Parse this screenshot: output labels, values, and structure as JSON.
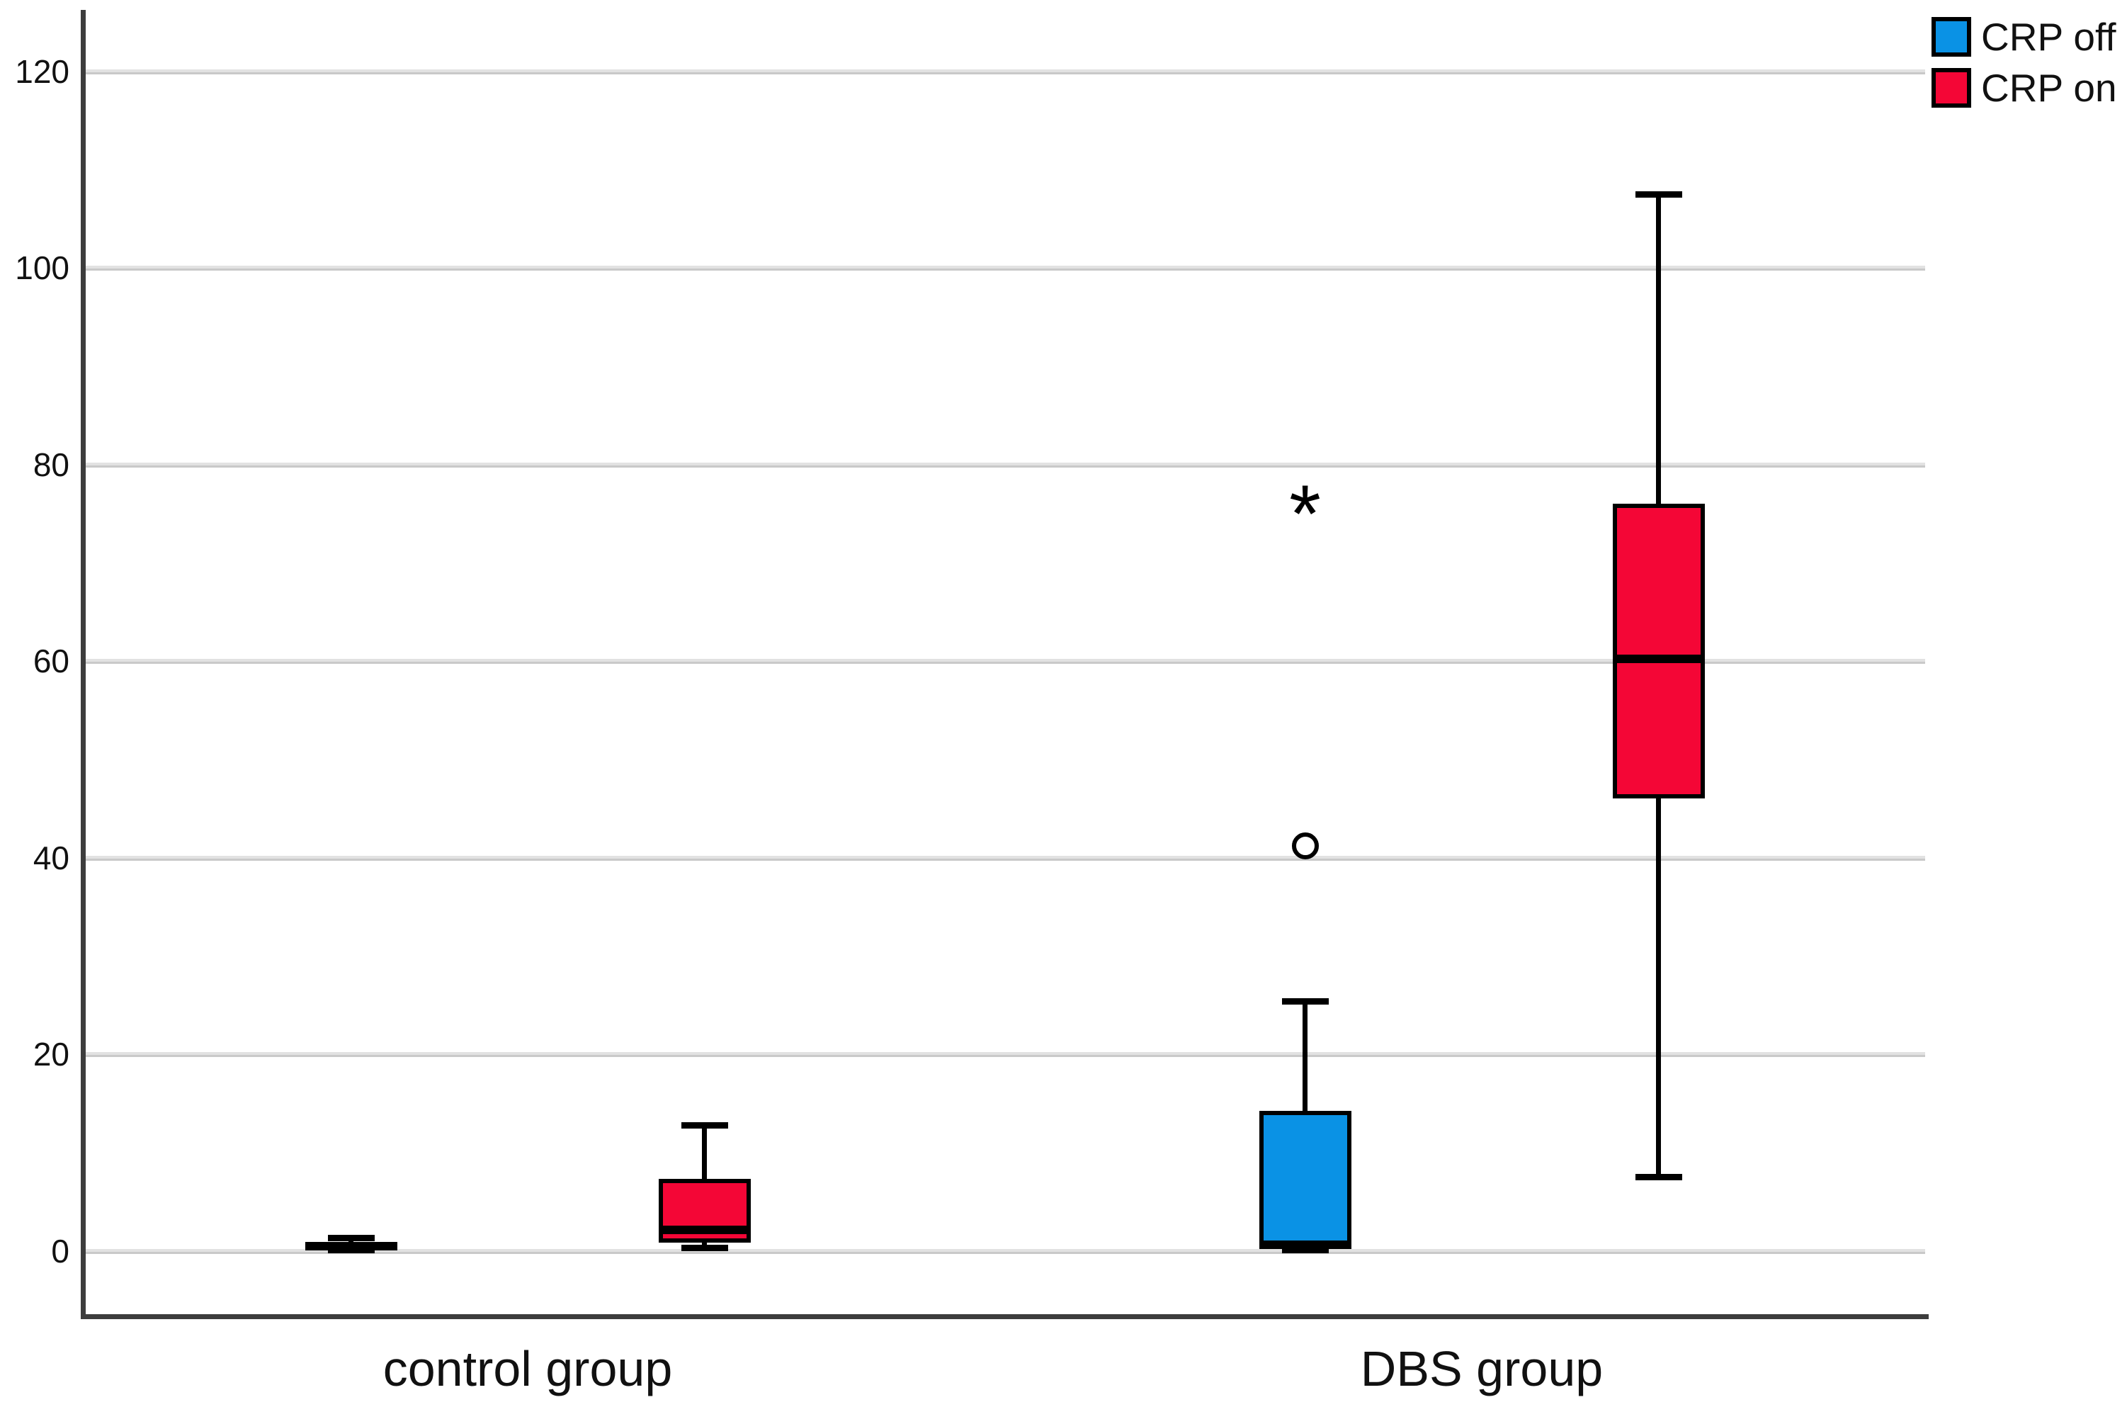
{
  "chart_data": {
    "type": "boxplot",
    "orientation": "vertical",
    "title": "",
    "xlabel": "",
    "ylabel": "",
    "y_axis": {
      "ticks": [
        0,
        20,
        40,
        60,
        80,
        100,
        120
      ],
      "range": [
        -6.7,
        126.2
      ],
      "grid": true
    },
    "x_axis": {
      "categories": [
        "control group",
        "DBS group"
      ]
    },
    "legend": {
      "position": "top-right",
      "entries": [
        {
          "label": "CRP off",
          "color": "#0a92e5"
        },
        {
          "label": "CRP on",
          "color": "#f40636"
        }
      ]
    },
    "series": [
      {
        "name": "CRP off",
        "color": "#0a92e5",
        "boxes": [
          {
            "category": "control group",
            "whisker_low": 0.1,
            "q1": 0.2,
            "median": 0.5,
            "q3": 0.9,
            "whisker_high": 1.3,
            "outliers": [],
            "extreme_outliers": []
          },
          {
            "category": "DBS group",
            "whisker_low": 0.1,
            "q1": 0.3,
            "median": 0.6,
            "q3": 14.2,
            "whisker_high": 25.4,
            "outliers": [
              41.2
            ],
            "extreme_outliers": [
              76.3
            ]
          }
        ]
      },
      {
        "name": "CRP on",
        "color": "#f40636",
        "boxes": [
          {
            "category": "control group",
            "whisker_low": 0.3,
            "q1": 0.8,
            "median": 2.1,
            "q3": 7.3,
            "whisker_high": 12.8,
            "outliers": [],
            "extreme_outliers": []
          },
          {
            "category": "DBS group",
            "whisker_low": 7.5,
            "q1": 46,
            "median": 60.2,
            "q3": 76,
            "whisker_high": 107.5,
            "outliers": [],
            "extreme_outliers": []
          }
        ]
      }
    ]
  }
}
